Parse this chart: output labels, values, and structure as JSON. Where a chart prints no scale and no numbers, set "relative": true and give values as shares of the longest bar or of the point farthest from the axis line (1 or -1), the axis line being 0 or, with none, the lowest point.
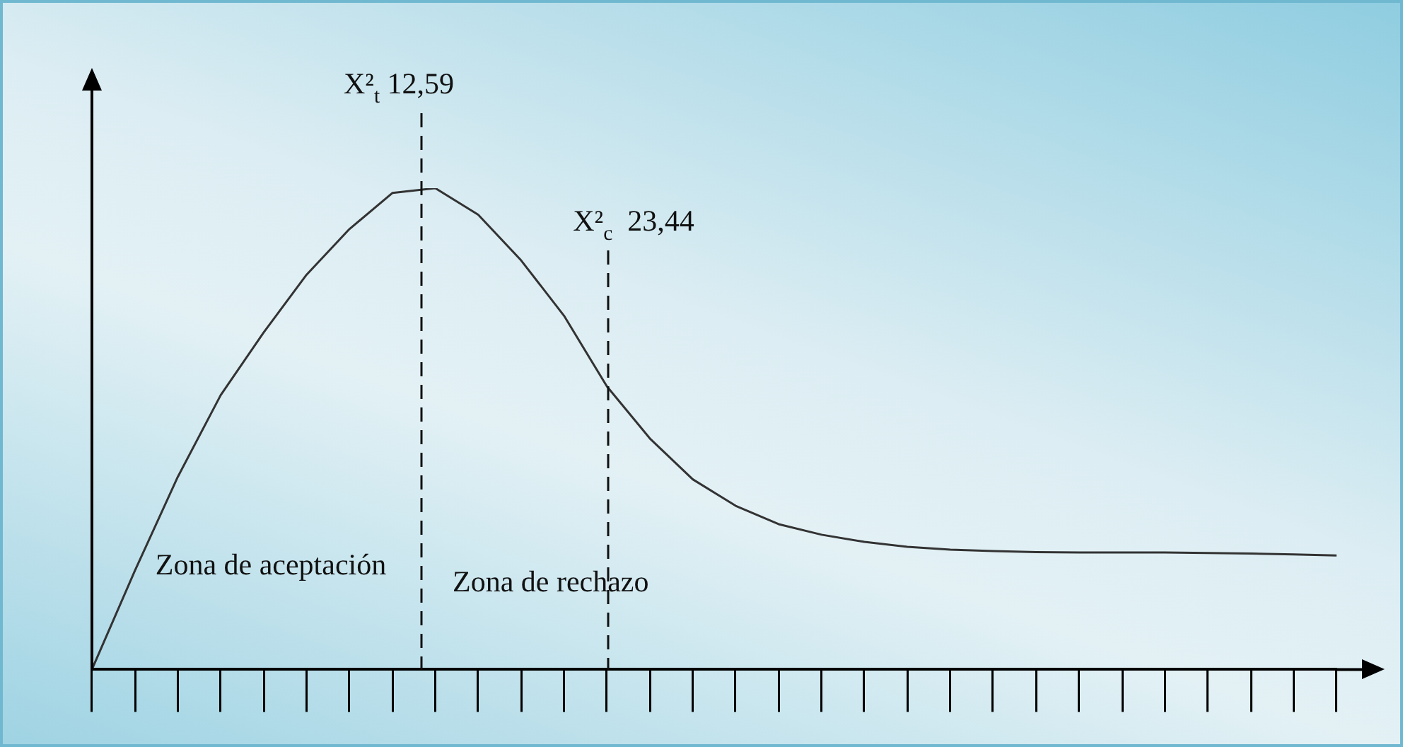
{
  "chart_data": {
    "type": "line",
    "relative": true,
    "color": "#333333",
    "marker": "none",
    "line_style": "solid",
    "categories": [
      null,
      null,
      null,
      null,
      null,
      null,
      null,
      null,
      null,
      null,
      null,
      null,
      null,
      null,
      null,
      null,
      null,
      null,
      null,
      null,
      null,
      null,
      null,
      null,
      null,
      null,
      null,
      null,
      null,
      null
    ],
    "values": [
      0,
      0.205,
      0.4,
      0.57,
      0.7,
      0.82,
      0.915,
      0.99,
      1,
      0.945,
      0.85,
      0.735,
      0.588,
      0.48,
      0.395,
      0.34,
      0.302,
      0.28,
      0.265,
      0.255,
      0.249,
      0.246,
      0.244,
      0.243,
      0.243,
      0.243,
      0.242,
      0.241,
      0.239,
      0.237
    ],
    "annotations": [
      "X²$_{t}$ 12,59",
      "X²$_{c}$  23,44",
      "Zona de aceptación",
      "Zona de rechazo"
    ]
  }
}
